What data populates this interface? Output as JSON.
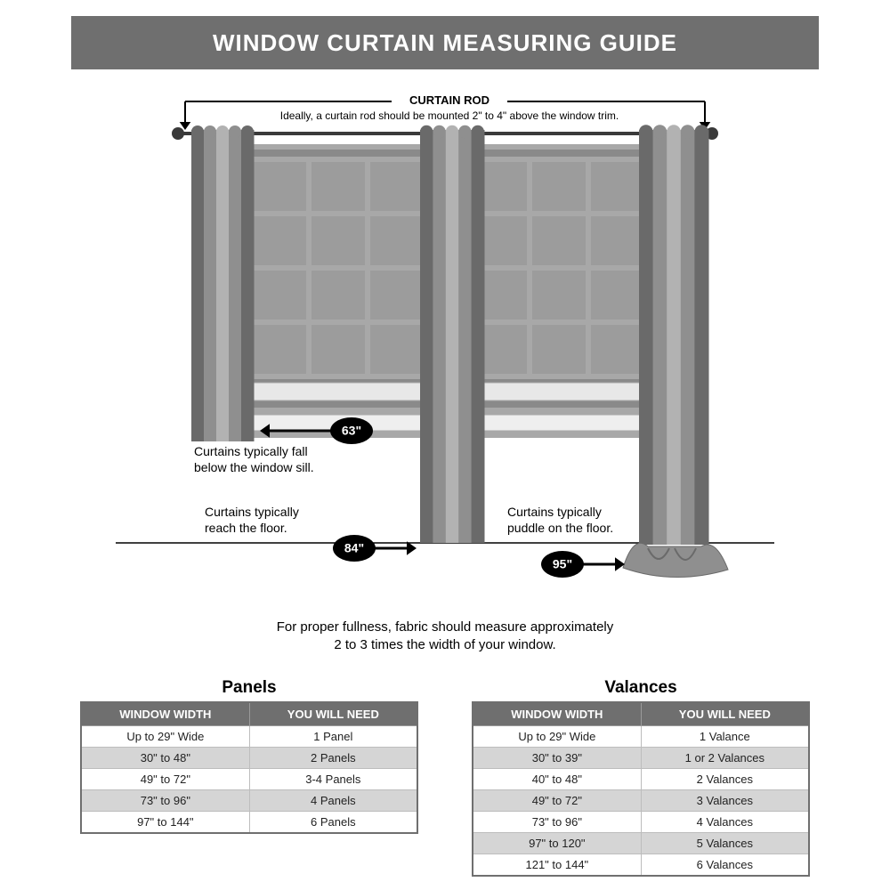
{
  "title": "WINDOW CURTAIN MEASURING GUIDE",
  "colors": {
    "title_bg": "#6f6f6f",
    "title_text": "#ffffff",
    "curtain": "#8f8f8f",
    "curtain_dark": "#6a6a6a",
    "curtain_light": "#b2b2b2",
    "window_frame": "#a8a8a8",
    "window_dark": "#8a8a8a",
    "window_glass": "#9c9c9c",
    "rod": "#3a3a3a",
    "badge_bg": "#000000",
    "badge_text": "#ffffff",
    "table_header_bg": "#6f6f6f",
    "row_even_bg": "#d5d5d5",
    "row_odd_bg": "#ffffff",
    "text": "#000000"
  },
  "rod_label": "CURTAIN ROD",
  "rod_note": "Ideally, a curtain rod should be mounted 2\" to 4\" above the window trim.",
  "curtains": {
    "c63": {
      "label": "63\"",
      "note1": "Curtains typically fall",
      "note2": "below the window sill."
    },
    "c84": {
      "label": "84\"",
      "note1": "Curtains typically",
      "note2": "reach the floor."
    },
    "c95": {
      "label": "95\"",
      "note1": "Curtains typically",
      "note2": "puddle on the floor."
    }
  },
  "fullness_note_1": "For proper fullness, fabric should measure approximately",
  "fullness_note_2": "2 to 3 times the width of your window.",
  "tables_font_size": 13,
  "title_font_size": 26,
  "note_font_size": 15,
  "anno_font_size": 14,
  "table_title_font_size": 19,
  "panels": {
    "title": "Panels",
    "columns": [
      "WINDOW WIDTH",
      "YOU WILL NEED"
    ],
    "rows": [
      [
        "Up to 29\" Wide",
        "1 Panel"
      ],
      [
        "30\" to 48\"",
        "2 Panels"
      ],
      [
        "49\" to 72\"",
        "3-4 Panels"
      ],
      [
        "73\" to 96\"",
        "4 Panels"
      ],
      [
        "97\" to 144\"",
        "6 Panels"
      ]
    ]
  },
  "valances": {
    "title": "Valances",
    "columns": [
      "WINDOW WIDTH",
      "YOU WILL NEED"
    ],
    "rows": [
      [
        "Up to 29\" Wide",
        "1 Valance"
      ],
      [
        "30\" to 39\"",
        "1 or 2 Valances"
      ],
      [
        "40\" to 48\"",
        "2 Valances"
      ],
      [
        "49\" to 72\"",
        "3 Valances"
      ],
      [
        "73\" to 96\"",
        "4 Valances"
      ],
      [
        "97\" to 120\"",
        "5 Valances"
      ],
      [
        "121\" to 144\"",
        "6 Valances"
      ]
    ]
  }
}
